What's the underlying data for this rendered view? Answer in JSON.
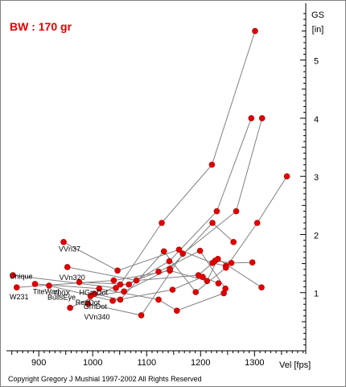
{
  "chart_data": {
    "type": "scatter",
    "title": "BW : 170 gr",
    "xlabel": "Vel [fps]",
    "ylabel": "GS",
    "yunit": "[in]",
    "xlim": [
      840,
      1395
    ],
    "ylim": [
      0,
      5.95
    ],
    "x_ticks": [
      "900",
      "1000",
      "1100",
      "1200",
      "1300"
    ],
    "y_ticks": [
      "1",
      "2",
      "3",
      "4",
      "5"
    ],
    "footer": "Copyright Gregory J  Mushial 1997-2002     All Rights Reserved",
    "colors": {
      "points": "#e00000",
      "lines": "#808080",
      "axis": "#000000",
      "title": "#e00000"
    },
    "series": [
      {
        "name": "VVn37",
        "label_at": [
          937,
          1.75
        ],
        "points": [
          [
            946,
            1.87
          ],
          [
            1046,
            1.38
          ],
          [
            1160,
            1.74
          ],
          [
            1222,
            1.51
          ],
          [
            1247,
            1.46
          ]
        ]
      },
      {
        "name": "VVn320",
        "label_at": [
          938,
          1.26
        ],
        "points": [
          [
            953,
            1.44
          ],
          [
            1081,
            1.21
          ],
          [
            1196,
            1.3
          ],
          [
            1227,
            1.55
          ],
          [
            1257,
            1.51
          ],
          [
            1296,
            1.52
          ]
        ]
      },
      {
        "name": "Unique",
        "label_at": [
          846,
          1.28
        ],
        "points": [
          [
            852,
            1.3
          ],
          [
            1043,
            1.08
          ],
          [
            1122,
            1.36
          ],
          [
            1199,
            1.72
          ],
          [
            1246,
            1.07
          ]
        ]
      },
      {
        "name": "W231",
        "label_at": [
          846,
          0.93
        ],
        "points": [
          [
            859,
            1.09
          ],
          [
            1039,
            1.21
          ],
          [
            1143,
            1.38
          ],
          [
            1212,
            1.2
          ],
          [
            1232,
            1.58
          ],
          [
            1313,
            1.09
          ]
        ]
      },
      {
        "name": "TiteWad",
        "label_at": [
          889,
          1.02
        ],
        "points": [
          [
            893,
            1.15
          ],
          [
            1012,
            1.07
          ],
          [
            1122,
            0.88
          ],
          [
            1156,
            0.69
          ],
          [
            1243,
            0.99
          ]
        ]
      },
      {
        "name": "700X",
        "label_at": [
          927,
          0.99
        ],
        "points": [
          [
            919,
            1.12
          ],
          [
            1037,
            0.86
          ],
          [
            1148,
            1.05
          ],
          [
            1204,
            1.27
          ],
          [
            1233,
            1.16
          ]
        ]
      },
      {
        "name": "BullsEye",
        "label_at": [
          916,
          0.92
        ],
        "points": [
          [
            958,
            0.74
          ],
          [
            1051,
            1.14
          ],
          [
            1128,
            2.2
          ],
          [
            1221,
            3.2
          ],
          [
            1301,
            5.5
          ]
        ]
      },
      {
        "name": "HGrnDot",
        "label_at": [
          975,
          1.0
        ],
        "points": [
          [
            975,
            1.18
          ],
          [
            1067,
            1.14
          ],
          [
            1142,
            1.54
          ],
          [
            1230,
            2.4
          ],
          [
            1294,
            4.0
          ]
        ]
      },
      {
        "name": "GrnDot",
        "label_at": [
          983,
          0.76
        ],
        "points": [
          [
            991,
            0.81
          ],
          [
            1090,
            0.61
          ],
          [
            1167,
            1.67
          ],
          [
            1266,
            2.4
          ],
          [
            1314,
            4.0
          ]
        ]
      },
      {
        "name": "RedDot",
        "label_at": [
          968,
          0.83
        ],
        "points": [
          [
            996,
            0.94
          ],
          [
            1058,
            1.02
          ],
          [
            1143,
            1.41
          ],
          [
            1222,
            2.2
          ],
          [
            1261,
            1.87
          ]
        ]
      },
      {
        "name": "VVn340",
        "label_at": [
          984,
          0.58
        ],
        "points": [
          [
            1003,
            0.98
          ],
          [
            1051,
            0.88
          ],
          [
            1132,
            1.71
          ],
          [
            1191,
            1.01
          ],
          [
            1247,
            1.43
          ],
          [
            1305,
            2.2
          ],
          [
            1360,
            3.0
          ]
        ]
      }
    ]
  }
}
